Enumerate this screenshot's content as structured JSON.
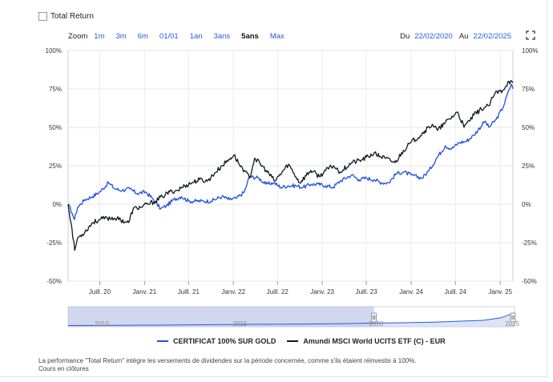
{
  "total_return": {
    "label": "Total Return",
    "checked": false
  },
  "zoom": {
    "label": "Zoom",
    "buttons": [
      "1m",
      "3m",
      "6m",
      "01/01",
      "1an",
      "3ans",
      "5ans",
      "Max"
    ],
    "active": "5ans"
  },
  "daterange": {
    "from_label": "Du",
    "from": "22/02/2020",
    "to_label": "Au",
    "to": "22/02/2025"
  },
  "fullscreen_icon": "expand-icon",
  "legend": {
    "series1": "CERTIFICAT 100% SUR GOLD",
    "series2": "Amundi MSCI World UCITS ETF (C) - EUR"
  },
  "colors": {
    "gold": "#1f4fe0",
    "msci": "#111820",
    "navigator": "#2a5bd7",
    "accent_link": "#2a5bd7"
  },
  "navigator": {
    "labels": [
      "2010",
      "2015",
      "2020",
      "2025"
    ]
  },
  "footnote": {
    "line1": "La performance \"Total Return\" intègre les versements de dividendes sur la période concernée, comme s'ils étaient réinvestis à 100%.",
    "line2": "Cours en clôtures"
  },
  "chart_data": {
    "type": "line",
    "x_ticks": [
      "Juill. 20",
      "Janv. 21",
      "Juill. 21",
      "Janv. 22",
      "Juill. 22",
      "Janv. 23",
      "Juill. 23",
      "Janv. 24",
      "Juill. 24",
      "Janv. 25"
    ],
    "y_ticks": [
      "100%",
      "75%",
      "50%",
      "25%",
      "0%",
      "-25%",
      "-50%"
    ],
    "ylim": [
      -50,
      100
    ],
    "grid": true,
    "legend_position": "bottom",
    "series": [
      {
        "name": "CERTIFICAT 100% SUR GOLD",
        "color": "#1f4fe0",
        "points": [
          [
            "2020-02-22",
            0
          ],
          [
            "2020-03-10",
            -6
          ],
          [
            "2020-03-19",
            -10
          ],
          [
            "2020-04-01",
            -2
          ],
          [
            "2020-05-01",
            3
          ],
          [
            "2020-06-01",
            5
          ],
          [
            "2020-07-01",
            8
          ],
          [
            "2020-08-06",
            14
          ],
          [
            "2020-09-01",
            10
          ],
          [
            "2020-10-01",
            9
          ],
          [
            "2020-11-01",
            10
          ],
          [
            "2020-12-01",
            7
          ],
          [
            "2021-01-05",
            8
          ],
          [
            "2021-02-01",
            4
          ],
          [
            "2021-03-08",
            -3
          ],
          [
            "2021-04-01",
            -1
          ],
          [
            "2021-05-01",
            3
          ],
          [
            "2021-06-01",
            5
          ],
          [
            "2021-07-01",
            2
          ],
          [
            "2021-08-01",
            2
          ],
          [
            "2021-09-01",
            2
          ],
          [
            "2021-10-01",
            2
          ],
          [
            "2021-11-15",
            5
          ],
          [
            "2021-12-15",
            3
          ],
          [
            "2022-01-15",
            4
          ],
          [
            "2022-02-15",
            8
          ],
          [
            "2022-03-08",
            18
          ],
          [
            "2022-04-15",
            17
          ],
          [
            "2022-05-15",
            13
          ],
          [
            "2022-06-15",
            14
          ],
          [
            "2022-07-15",
            11
          ],
          [
            "2022-08-15",
            12
          ],
          [
            "2022-09-15",
            12
          ],
          [
            "2022-10-15",
            11
          ],
          [
            "2022-11-15",
            13
          ],
          [
            "2022-12-15",
            13
          ],
          [
            "2023-01-15",
            12
          ],
          [
            "2023-02-15",
            11
          ],
          [
            "2023-03-15",
            15
          ],
          [
            "2023-05-01",
            19
          ],
          [
            "2023-06-01",
            16
          ],
          [
            "2023-07-01",
            17
          ],
          [
            "2023-08-01",
            16
          ],
          [
            "2023-09-01",
            14
          ],
          [
            "2023-10-01",
            14
          ],
          [
            "2023-11-01",
            20
          ],
          [
            "2023-12-01",
            21
          ],
          [
            "2024-01-01",
            19
          ],
          [
            "2024-02-15",
            17
          ],
          [
            "2024-03-15",
            22
          ],
          [
            "2024-04-15",
            30
          ],
          [
            "2024-05-20",
            38
          ],
          [
            "2024-06-15",
            36
          ],
          [
            "2024-07-15",
            40
          ],
          [
            "2024-08-15",
            41
          ],
          [
            "2024-09-15",
            45
          ],
          [
            "2024-10-30",
            54
          ],
          [
            "2024-11-15",
            50
          ],
          [
            "2024-12-15",
            55
          ],
          [
            "2025-01-15",
            64
          ],
          [
            "2025-02-05",
            74
          ],
          [
            "2025-02-15",
            78
          ],
          [
            "2025-02-22",
            75
          ]
        ]
      },
      {
        "name": "Amundi MSCI World UCITS ETF (C) - EUR",
        "color": "#111820",
        "points": [
          [
            "2020-02-22",
            0
          ],
          [
            "2020-03-05",
            -12
          ],
          [
            "2020-03-20",
            -30
          ],
          [
            "2020-04-01",
            -22
          ],
          [
            "2020-05-01",
            -18
          ],
          [
            "2020-06-01",
            -12
          ],
          [
            "2020-07-01",
            -10
          ],
          [
            "2020-08-01",
            -9
          ],
          [
            "2020-09-01",
            -9
          ],
          [
            "2020-10-28",
            -12
          ],
          [
            "2020-11-15",
            -3
          ],
          [
            "2020-12-15",
            -2
          ],
          [
            "2021-01-15",
            0
          ],
          [
            "2021-02-15",
            2
          ],
          [
            "2021-03-15",
            5
          ],
          [
            "2021-04-15",
            8
          ],
          [
            "2021-05-15",
            9
          ],
          [
            "2021-06-15",
            12
          ],
          [
            "2021-07-15",
            14
          ],
          [
            "2021-08-15",
            16
          ],
          [
            "2021-09-15",
            15
          ],
          [
            "2021-10-15",
            20
          ],
          [
            "2021-11-15",
            25
          ],
          [
            "2021-12-20",
            30
          ],
          [
            "2022-01-03",
            32
          ],
          [
            "2022-01-25",
            26
          ],
          [
            "2022-02-15",
            22
          ],
          [
            "2022-03-08",
            17
          ],
          [
            "2022-03-29",
            30
          ],
          [
            "2022-05-15",
            22
          ],
          [
            "2022-06-20",
            15
          ],
          [
            "2022-08-15",
            26
          ],
          [
            "2022-09-30",
            14
          ],
          [
            "2022-11-15",
            22
          ],
          [
            "2022-12-20",
            18
          ],
          [
            "2023-01-15",
            22
          ],
          [
            "2023-02-15",
            25
          ],
          [
            "2023-03-15",
            21
          ],
          [
            "2023-05-01",
            27
          ],
          [
            "2023-06-15",
            29
          ],
          [
            "2023-07-31",
            33
          ],
          [
            "2023-09-15",
            30
          ],
          [
            "2023-10-27",
            27
          ],
          [
            "2023-11-30",
            35
          ],
          [
            "2023-12-31",
            40
          ],
          [
            "2024-02-15",
            46
          ],
          [
            "2024-03-28",
            52
          ],
          [
            "2024-04-19",
            48
          ],
          [
            "2024-05-20",
            53
          ],
          [
            "2024-07-10",
            60
          ],
          [
            "2024-08-05",
            50
          ],
          [
            "2024-09-15",
            58
          ],
          [
            "2024-10-15",
            62
          ],
          [
            "2024-11-15",
            64
          ],
          [
            "2024-12-10",
            72
          ],
          [
            "2025-01-10",
            74
          ],
          [
            "2025-02-05",
            80
          ],
          [
            "2025-02-22",
            79
          ]
        ]
      }
    ]
  }
}
